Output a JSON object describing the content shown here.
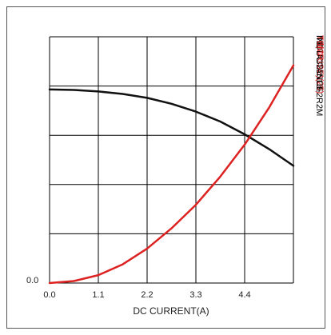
{
  "chart_data": {
    "type": "line",
    "xlabel": "DC CURRENT(A)",
    "x_ticks": [
      "0.0",
      "1.1",
      "2.2",
      "3.3",
      "4.4"
    ],
    "y_tick_label": "0.0",
    "xlim": [
      0,
      5.5
    ],
    "ylim": [
      0,
      5
    ],
    "grid": true,
    "side_labels": [
      {
        "text": "MDTA32251B-2R2M",
        "color": "#000000"
      },
      {
        "text": "Td(CRISE)(25)",
        "color": "#dd2222"
      },
      {
        "text": "INDUCTANCE",
        "color": "#000000"
      },
      {
        "text": "TEMP",
        "color": "#dd2222"
      }
    ],
    "series": [
      {
        "color": "#111111",
        "x": [
          0,
          0.55,
          1.1,
          1.65,
          2.2,
          2.75,
          3.3,
          3.85,
          4.4,
          4.95,
          5.5
        ],
        "y": [
          3.93,
          3.92,
          3.89,
          3.84,
          3.76,
          3.64,
          3.48,
          3.28,
          3.02,
          2.72,
          2.38
        ]
      },
      {
        "color": "#dd2222",
        "x": [
          0,
          0.55,
          1.1,
          1.65,
          2.2,
          2.75,
          3.3,
          3.85,
          4.4,
          4.95,
          5.5
        ],
        "y": [
          0,
          0.04,
          0.16,
          0.38,
          0.7,
          1.11,
          1.59,
          2.16,
          2.81,
          3.56,
          4.42
        ]
      }
    ]
  }
}
